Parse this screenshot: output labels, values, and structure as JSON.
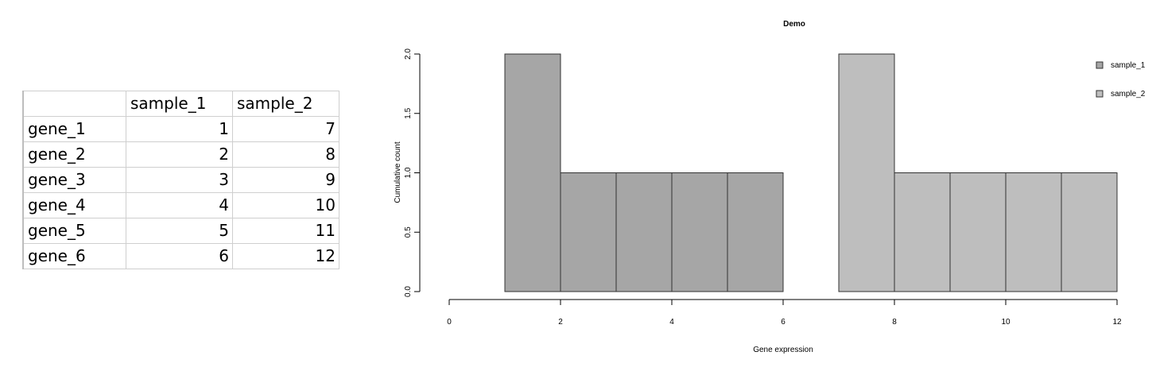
{
  "table": {
    "headers": [
      "",
      "sample_1",
      "sample_2"
    ],
    "rows": [
      [
        "gene_1",
        "1",
        "7"
      ],
      [
        "gene_2",
        "2",
        "8"
      ],
      [
        "gene_3",
        "3",
        "9"
      ],
      [
        "gene_4",
        "4",
        "10"
      ],
      [
        "gene_5",
        "5",
        "11"
      ],
      [
        "gene_6",
        "6",
        "12"
      ]
    ]
  },
  "chart_data": {
    "type": "bar",
    "title": "Demo",
    "xlabel": "Gene expression",
    "ylabel": "Cumulative count",
    "xlim": [
      0,
      12
    ],
    "ylim": [
      0,
      2
    ],
    "x_ticks": [
      "0",
      "2",
      "4",
      "6",
      "8",
      "10",
      "12"
    ],
    "y_ticks": [
      "0.0",
      "0.5",
      "1.0",
      "1.5",
      "2.0"
    ],
    "grid": false,
    "legend_position": "top-right",
    "series": [
      {
        "name": "sample_1",
        "color": "#a6a6a6",
        "bins": [
          {
            "start": 1,
            "end": 2,
            "count": 2
          },
          {
            "start": 2,
            "end": 3,
            "count": 1
          },
          {
            "start": 3,
            "end": 4,
            "count": 1
          },
          {
            "start": 4,
            "end": 5,
            "count": 1
          },
          {
            "start": 5,
            "end": 6,
            "count": 1
          }
        ]
      },
      {
        "name": "sample_2",
        "color": "#bebebe",
        "bins": [
          {
            "start": 7,
            "end": 8,
            "count": 2
          },
          {
            "start": 8,
            "end": 9,
            "count": 1
          },
          {
            "start": 9,
            "end": 10,
            "count": 1
          },
          {
            "start": 10,
            "end": 11,
            "count": 1
          },
          {
            "start": 11,
            "end": 12,
            "count": 1
          }
        ]
      }
    ]
  }
}
